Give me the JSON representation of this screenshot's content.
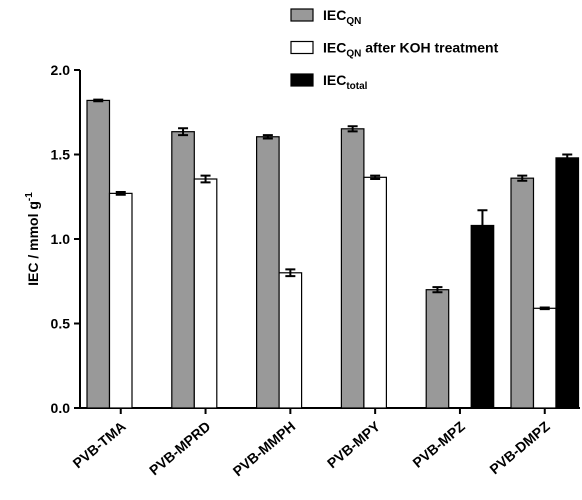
{
  "chart_data": {
    "type": "bar",
    "ylabel": "IEC / mmol g",
    "ylabel_superscript": "-1",
    "categories": [
      "PVB-TMA",
      "PVB-MPRD",
      "PVB-MMPH",
      "PVB-MPY",
      "PVB-MPZ",
      "PVB-DMPZ"
    ],
    "series": [
      {
        "name": "IEC",
        "subscript": "QN",
        "color": "#999999",
        "values": [
          1.82,
          1.635,
          1.605,
          1.652,
          0.7,
          1.36
        ],
        "errors": [
          0.005,
          0.02,
          0.01,
          0.015,
          0.015,
          0.015
        ]
      },
      {
        "name": "IEC",
        "subscript": "QN",
        "suffix": " after KOH treatment",
        "color": "#ffffff",
        "values": [
          1.27,
          1.355,
          0.8,
          1.365,
          null,
          0.59
        ],
        "errors": [
          0.008,
          0.02,
          0.02,
          0.01,
          null,
          0.005
        ]
      },
      {
        "name": "IEC",
        "subscript": "total",
        "color": "#000000",
        "values": [
          null,
          null,
          null,
          null,
          1.08,
          1.48
        ],
        "errors": [
          null,
          null,
          null,
          null,
          0.09,
          0.02
        ]
      }
    ],
    "ylim": [
      0,
      2.0
    ],
    "yticks": [
      {
        "value": 0,
        "label": "0.0"
      },
      {
        "value": 0.5,
        "label": "0.5"
      },
      {
        "value": 1.0,
        "label": "1.0"
      },
      {
        "value": 1.5,
        "label": "1.5"
      },
      {
        "value": 2.0,
        "label": "2.0"
      }
    ]
  }
}
